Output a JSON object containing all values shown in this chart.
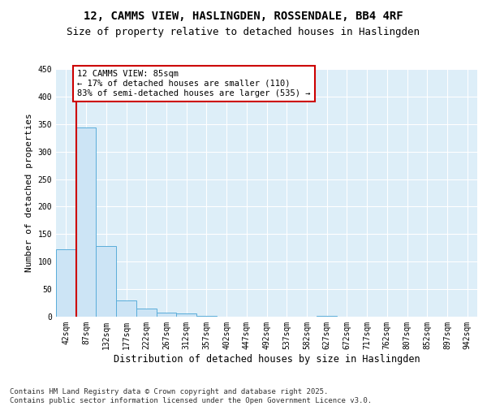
{
  "title1": "12, CAMMS VIEW, HASLINGDEN, ROSSENDALE, BB4 4RF",
  "title2": "Size of property relative to detached houses in Haslingden",
  "xlabel": "Distribution of detached houses by size in Haslingden",
  "ylabel": "Number of detached properties",
  "categories": [
    "42sqm",
    "87sqm",
    "132sqm",
    "177sqm",
    "222sqm",
    "267sqm",
    "312sqm",
    "357sqm",
    "402sqm",
    "447sqm",
    "492sqm",
    "537sqm",
    "582sqm",
    "627sqm",
    "672sqm",
    "717sqm",
    "762sqm",
    "807sqm",
    "852sqm",
    "897sqm",
    "942sqm"
  ],
  "values": [
    122,
    344,
    128,
    29,
    15,
    8,
    6,
    2,
    0,
    0,
    0,
    0,
    0,
    1,
    0,
    0,
    0,
    0,
    0,
    0,
    0
  ],
  "bar_color": "#cce4f5",
  "bar_edge_color": "#5aadda",
  "marker_line_color": "#cc0000",
  "annotation_text": "12 CAMMS VIEW: 85sqm\n← 17% of detached houses are smaller (110)\n83% of semi-detached houses are larger (535) →",
  "annotation_box_color": "#cc0000",
  "background_color": "#ddeef8",
  "grid_color": "#ffffff",
  "ylim": [
    0,
    450
  ],
  "yticks": [
    0,
    50,
    100,
    150,
    200,
    250,
    300,
    350,
    400,
    450
  ],
  "title1_fontsize": 10,
  "title2_fontsize": 9,
  "xlabel_fontsize": 8.5,
  "ylabel_fontsize": 8,
  "tick_fontsize": 7,
  "annotation_fontsize": 7.5,
  "footer_fontsize": 6.5,
  "footer": "Contains HM Land Registry data © Crown copyright and database right 2025.\nContains public sector information licensed under the Open Government Licence v3.0."
}
